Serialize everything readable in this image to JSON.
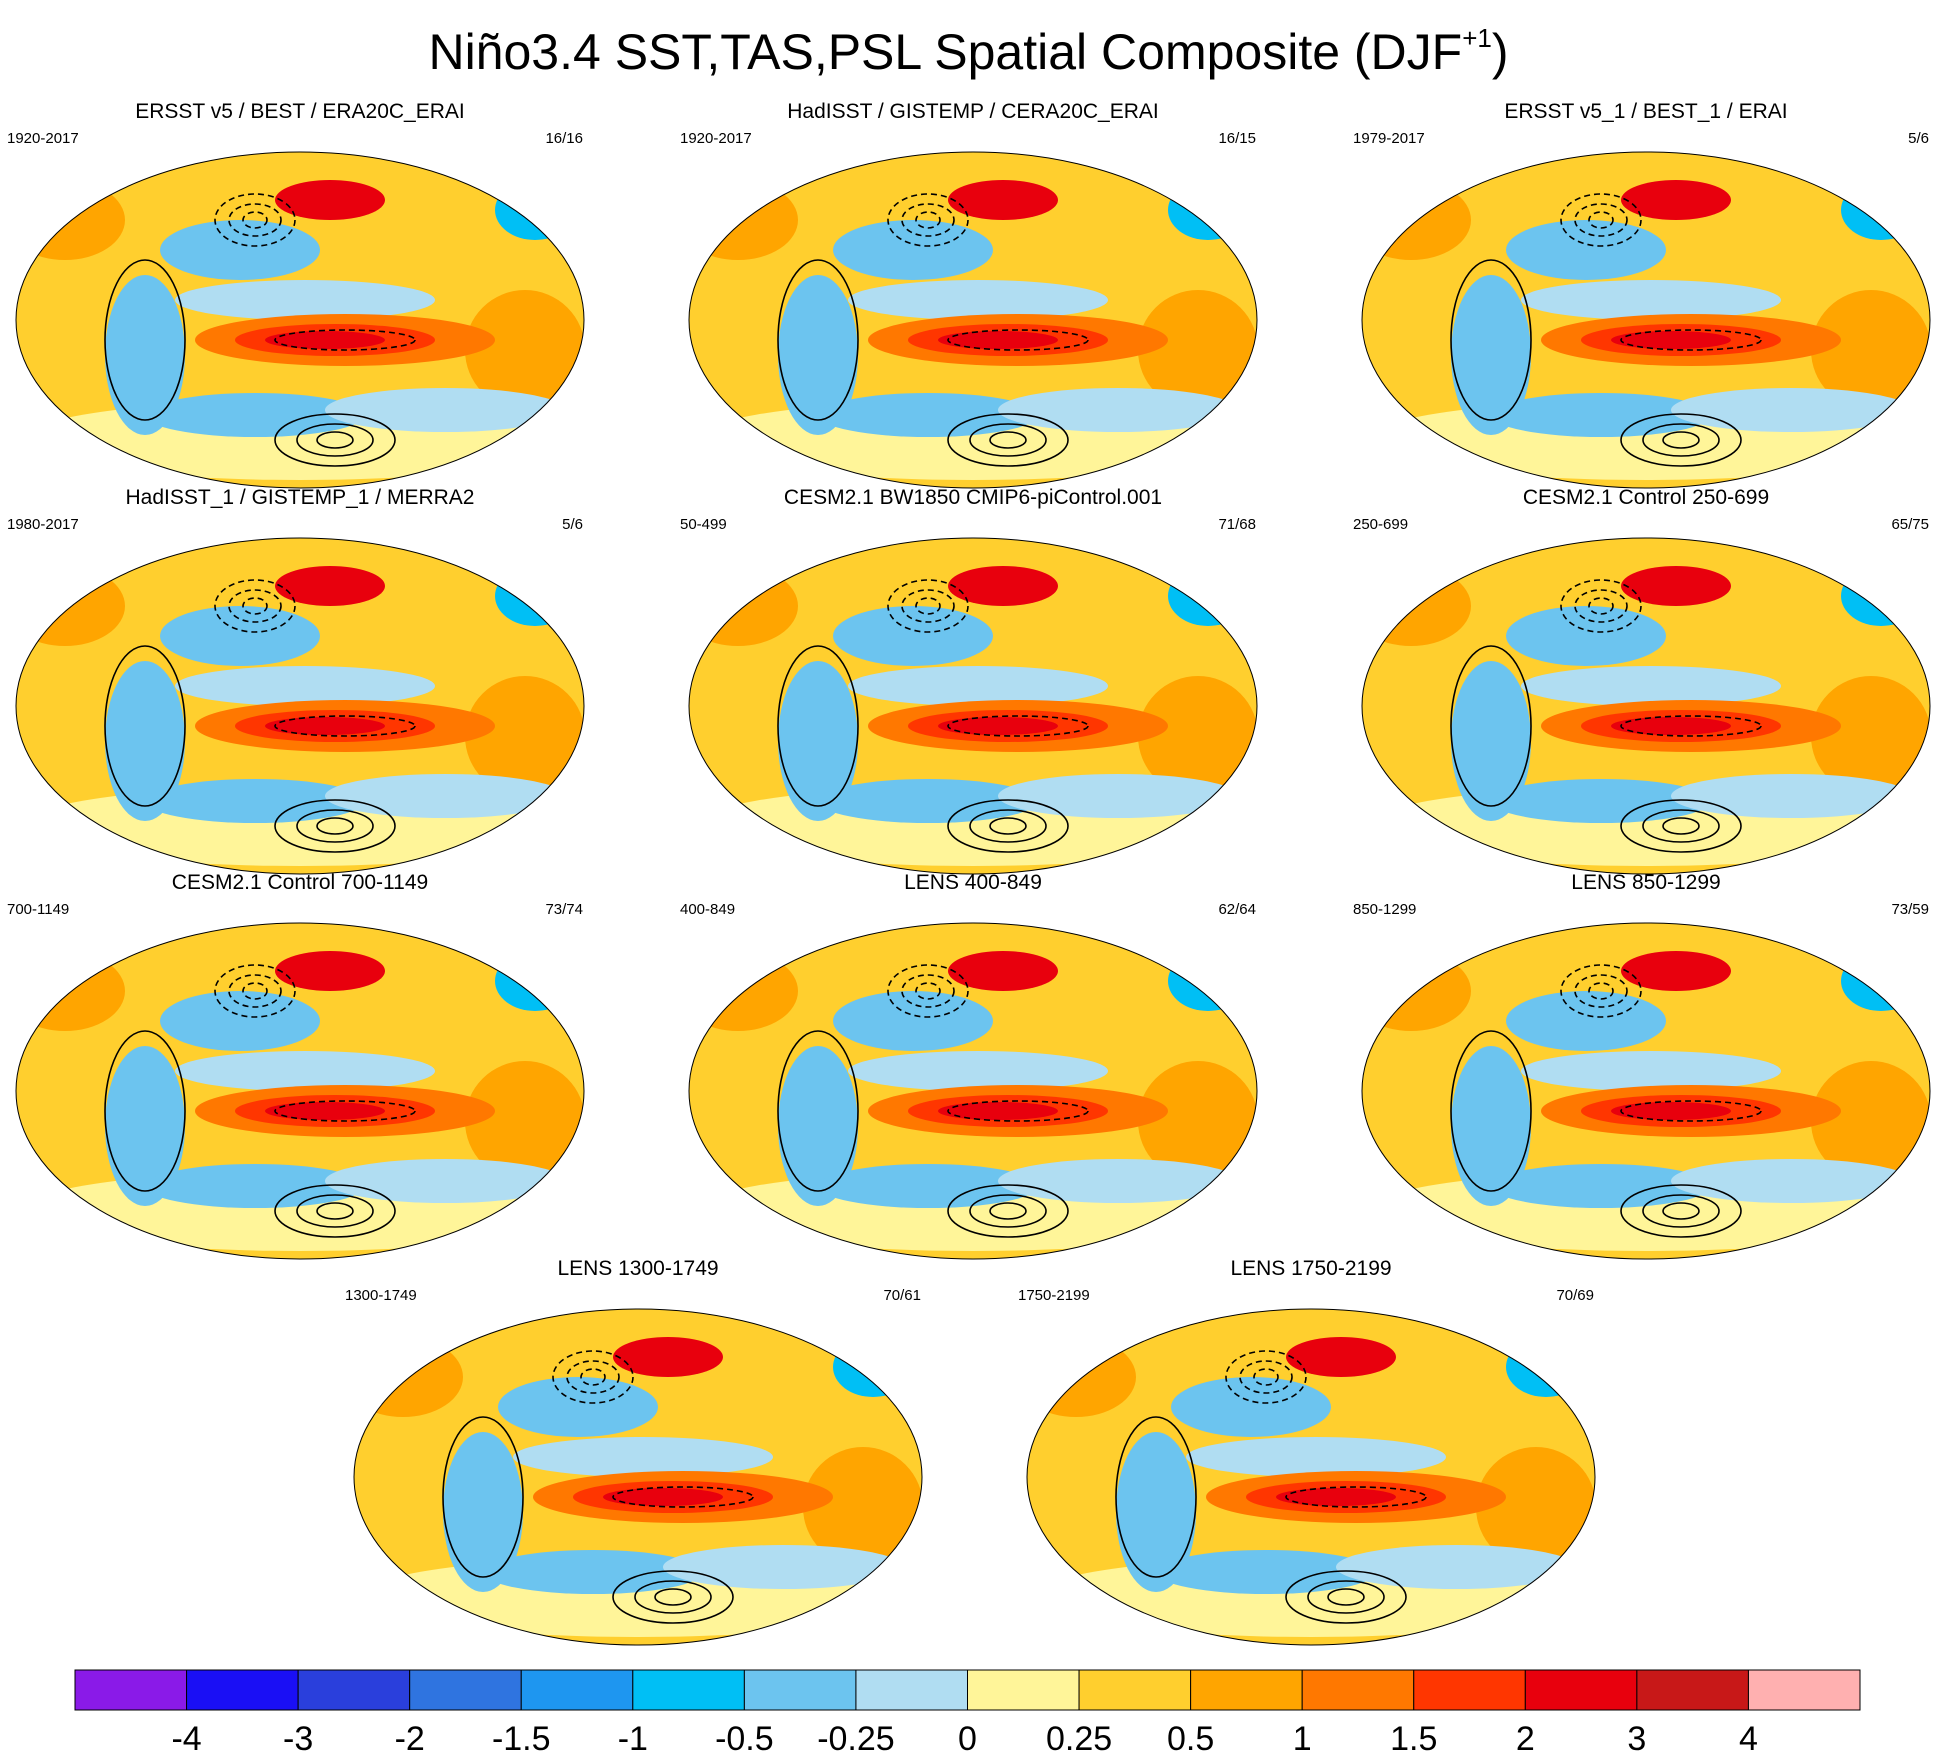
{
  "title": {
    "main": "Niño3.4 SST,TAS,PSL Spatial Composite (DJF",
    "superscript": "+1",
    "suffix": ")"
  },
  "panels": [
    {
      "title": "ERSST v5 / BEST / ERA20C_ERAI",
      "years": "1920-2017",
      "count": "16/16"
    },
    {
      "title": "HadISST / GISTEMP / CERA20C_ERAI",
      "years": "1920-2017",
      "count": "16/15"
    },
    {
      "title": "ERSST v5_1 / BEST_1 / ERAI",
      "years": "1979-2017",
      "count": "5/6"
    },
    {
      "title": "HadISST_1 / GISTEMP_1 / MERRA2",
      "years": "1980-2017",
      "count": "5/6"
    },
    {
      "title": "CESM2.1 BW1850 CMIP6-piControl.001",
      "years": "50-499",
      "count": "71/68"
    },
    {
      "title": "CESM2.1 Control 250-699",
      "years": "250-699",
      "count": "65/75"
    },
    {
      "title": "CESM2.1 Control 700-1149",
      "years": "700-1149",
      "count": "73/74"
    },
    {
      "title": "LENS 400-849",
      "years": "400-849",
      "count": "62/64"
    },
    {
      "title": "LENS 850-1299",
      "years": "850-1299",
      "count": "73/59"
    },
    {
      "title": "LENS 1300-1749",
      "years": "1300-1749",
      "count": "70/61"
    },
    {
      "title": "LENS 1750-2199",
      "years": "1750-2199",
      "count": "70/69"
    }
  ],
  "colorbar": {
    "labels": [
      "-4",
      "-3",
      "-2",
      "-1.5",
      "-1",
      "-0.5",
      "-0.25",
      "0",
      "0.25",
      "0.5",
      "1",
      "1.5",
      "2",
      "3",
      "4"
    ],
    "colors": [
      "#8a1ae8",
      "#1a0ff5",
      "#2a3fdc",
      "#2f74e0",
      "#1e96f0",
      "#00bff5",
      "#6cc4ef",
      "#b0ddf2",
      "#fff599",
      "#ffcf2e",
      "#ffa500",
      "#ff7800",
      "#ff3600",
      "#e8000d",
      "#c81818",
      "#ffb0b0"
    ]
  },
  "chart_data": {
    "type": "heatmap",
    "title": "Niño3.4 SST,TAS,PSL Spatial Composite (DJF+1)",
    "projection": "Robinson global maps, Pacific-centered",
    "fill_variable": "SST/TAS composite anomaly",
    "contour_variable": "PSL composite anomaly (solid positive, dashed negative)",
    "colorbar_levels": [
      -4,
      -3,
      -2,
      -1.5,
      -1,
      -0.5,
      -0.25,
      0,
      0.25,
      0.5,
      1,
      1.5,
      2,
      3,
      4
    ],
    "panels": [
      "ERSST v5 / BEST / ERA20C_ERAI",
      "HadISST / GISTEMP / CERA20C_ERAI",
      "ERSST v5_1 / BEST_1 / ERAI",
      "HadISST_1 / GISTEMP_1 / MERRA2",
      "CESM2.1 BW1850 CMIP6-piControl.001",
      "CESM2.1 Control 250-699",
      "CESM2.1 Control 700-1149",
      "LENS 400-849",
      "LENS 850-1299",
      "LENS 1300-1749",
      "LENS 1750-2199"
    ]
  }
}
